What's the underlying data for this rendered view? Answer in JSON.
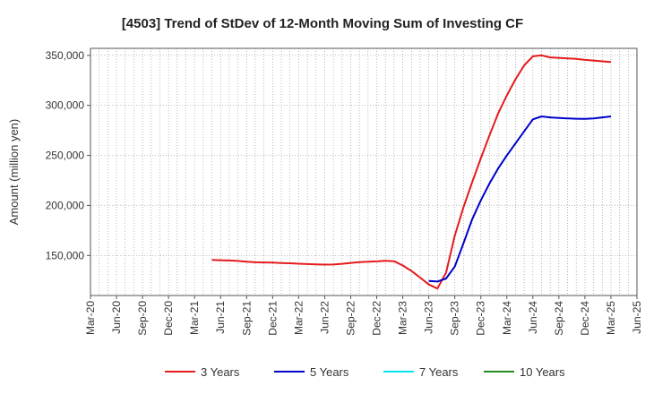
{
  "chart_data": {
    "type": "line",
    "title": "[4503]  Trend of StDev of 12-Month Moving Sum of Investing CF",
    "xlabel": "",
    "ylabel": "Amount (million yen)",
    "ylim": [
      110000,
      357000
    ],
    "y_ticks": [
      150000,
      200000,
      250000,
      300000,
      350000
    ],
    "y_tick_labels": [
      "150,000",
      "200,000",
      "250,000",
      "300,000",
      "350,000"
    ],
    "x_ticks": [
      "Mar-20",
      "Jun-20",
      "Sep-20",
      "Dec-20",
      "Mar-21",
      "Jun-21",
      "Sep-21",
      "Dec-21",
      "Mar-22",
      "Jun-22",
      "Sep-22",
      "Dec-22",
      "Mar-23",
      "Jun-23",
      "Sep-23",
      "Dec-23",
      "Mar-24",
      "Jun-24",
      "Sep-24",
      "Dec-24",
      "Mar-25",
      "Jun-25"
    ],
    "grid": true,
    "legend_position": "bottom",
    "series": [
      {
        "name": "3 Years",
        "color": "#e41a1c",
        "x": [
          "May-21",
          "Jun-21",
          "Jul-21",
          "Aug-21",
          "Sep-21",
          "Oct-21",
          "Nov-21",
          "Dec-21",
          "Jan-22",
          "Feb-22",
          "Mar-22",
          "Apr-22",
          "May-22",
          "Jun-22",
          "Jul-22",
          "Aug-22",
          "Sep-22",
          "Oct-22",
          "Nov-22",
          "Dec-22",
          "Jan-23",
          "Feb-23",
          "Mar-23",
          "Apr-23",
          "May-23",
          "Jun-23",
          "Jul-23",
          "Aug-23",
          "Sep-23",
          "Oct-23",
          "Nov-23",
          "Dec-23",
          "Jan-24",
          "Feb-24",
          "Mar-24",
          "Apr-24",
          "May-24",
          "Jun-24",
          "Jul-24",
          "Aug-24",
          "Sep-24",
          "Oct-24",
          "Nov-24",
          "Dec-24",
          "Jan-25",
          "Feb-25",
          "Mar-25"
        ],
        "values": [
          145500,
          145300,
          145000,
          144500,
          143800,
          143200,
          143000,
          142800,
          142500,
          142200,
          141800,
          141400,
          141100,
          140900,
          141000,
          141700,
          142600,
          143300,
          143800,
          144100,
          144600,
          144300,
          140000,
          134500,
          128000,
          121000,
          117000,
          133000,
          170000,
          198000,
          223000,
          247000,
          270000,
          292000,
          310000,
          326000,
          340000,
          349000,
          350000,
          348000,
          347500,
          347000,
          346500,
          345500,
          344800,
          344000,
          343300
        ]
      },
      {
        "name": "5 Years",
        "color": "#0000cc",
        "x": [
          "Jun-23",
          "Jul-23",
          "Aug-23",
          "Sep-23",
          "Oct-23",
          "Nov-23",
          "Dec-23",
          "Jan-24",
          "Feb-24",
          "Mar-24",
          "Apr-24",
          "May-24",
          "Jun-24",
          "Jul-24",
          "Aug-24",
          "Sep-24",
          "Oct-24",
          "Nov-24",
          "Dec-24",
          "Jan-25",
          "Feb-25",
          "Mar-25"
        ],
        "values": [
          124500,
          124000,
          127000,
          139000,
          162000,
          186000,
          205000,
          222000,
          237000,
          250000,
          262000,
          274000,
          286000,
          289000,
          288000,
          287500,
          287000,
          286700,
          286500,
          287000,
          288000,
          289000
        ]
      },
      {
        "name": "7 Years",
        "color": "#00e5ee",
        "x": [],
        "values": []
      },
      {
        "name": "10 Years",
        "color": "#228b22",
        "x": [],
        "values": []
      }
    ]
  }
}
